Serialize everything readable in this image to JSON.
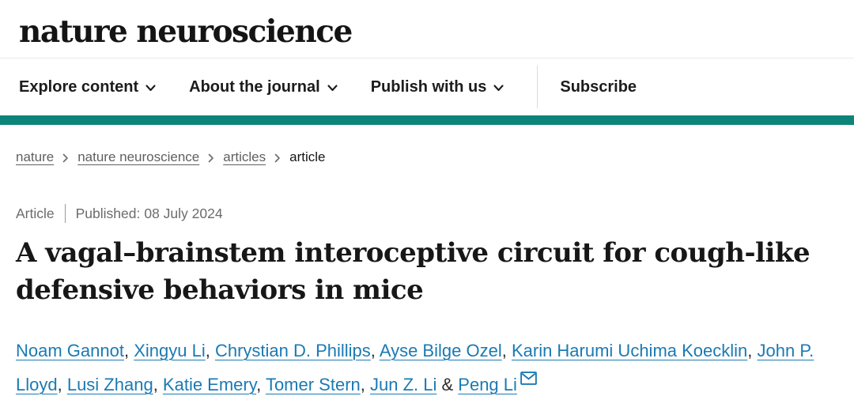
{
  "brand": {
    "logo_text": "nature neuroscience"
  },
  "nav": {
    "items": [
      {
        "label": "Explore content",
        "dropdown": true
      },
      {
        "label": "About the journal",
        "dropdown": true
      },
      {
        "label": "Publish with us",
        "dropdown": true
      }
    ],
    "subscribe_label": "Subscribe"
  },
  "breadcrumb": {
    "items": [
      {
        "label": "nature",
        "link": true
      },
      {
        "label": "nature neuroscience",
        "link": true
      },
      {
        "label": "articles",
        "link": true
      },
      {
        "label": "article",
        "link": false
      }
    ]
  },
  "meta": {
    "article_type": "Article",
    "published_label": "Published:",
    "published_date": "08 July 2024"
  },
  "article": {
    "title": "A vagal–brainstem interoceptive circuit for cough-like defensive behaviors in mice",
    "title_lines": [
      "A vagal–brainstem interoceptive circuit for cough-like",
      "defensive behaviors in mice"
    ]
  },
  "authors": {
    "names": [
      "Noam Gannot",
      "Xingyu Li",
      "Chrystian D. Phillips",
      "Ayse Bilge Ozel",
      "Karin Harumi Uchima Koecklin",
      "John P. Lloyd",
      "Lusi Zhang",
      "Katie Emery",
      "Tomer Stern",
      "Jun Z. Li",
      "Peng Li"
    ],
    "separator": ", ",
    "last_separator": "&",
    "corresponding_author": "Peng Li"
  },
  "icons": {
    "chevron_down": "⌄",
    "breadcrumb_separator": "›",
    "envelope": "✉"
  },
  "colors": {
    "accent_teal": "#0d8479",
    "link_blue": "#1a7ab4",
    "muted_text": "#666666",
    "dark_text": "#1f1f1f"
  }
}
